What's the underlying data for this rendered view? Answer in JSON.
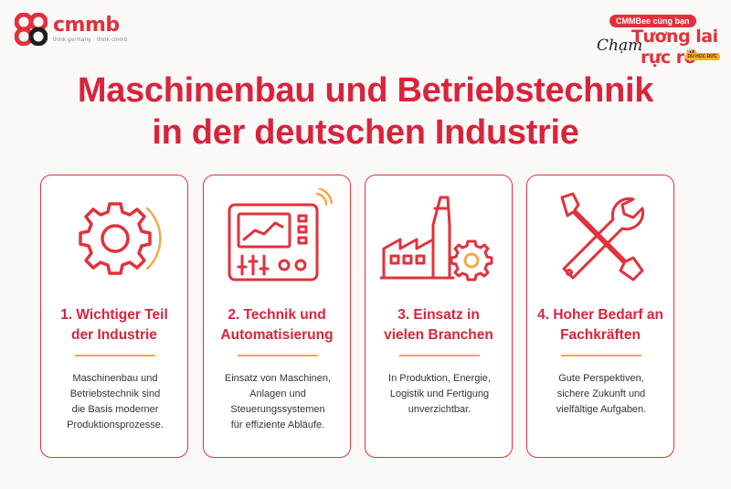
{
  "brand": {
    "name": "cmmb",
    "tagline": "think germany · think cmmb",
    "colors": {
      "primary": "#d8243b",
      "accent": "#f0a94c",
      "dark": "#1d1d1d"
    }
  },
  "promo": {
    "pill": "CMMBee cùng bạn",
    "script": "Chạm",
    "line1": "Tương lai",
    "line2": "rực rỡ",
    "badge": "DU HỌC ĐỨC"
  },
  "title": {
    "line1": "Maschinenbau und Betriebstechnik",
    "line2": "in der deutschen Industrie"
  },
  "cards": [
    {
      "icon": "gear-icon",
      "heading_line1": "1. Wichtiger Teil",
      "heading_line2": "der Industrie",
      "body": [
        "Maschinenbau und",
        "Betriebstechnik sind",
        "die Basis moderner",
        "Produktionsprozesse."
      ]
    },
    {
      "icon": "control-panel-icon",
      "heading_line1": "2. Technik und",
      "heading_line2": "Automatisierung",
      "body": [
        "Einsatz von Maschinen,",
        "Anlagen und",
        "Steuerungssystemen",
        "für effiziente Abläufe."
      ]
    },
    {
      "icon": "factory-icon",
      "heading_line1": "3. Einsatz in",
      "heading_line2": "vielen Branchen",
      "body": [
        "In Produktion, Energie,",
        "Logistik und Fertigung",
        "unverzichtbar."
      ]
    },
    {
      "icon": "tools-icon",
      "heading_line1": "4. Hoher Bedarf an",
      "heading_line2": "Fachkräften",
      "body": [
        "Gute Perspektiven,",
        "sichere Zukunft und",
        "vielfältige Aufgaben."
      ]
    }
  ]
}
